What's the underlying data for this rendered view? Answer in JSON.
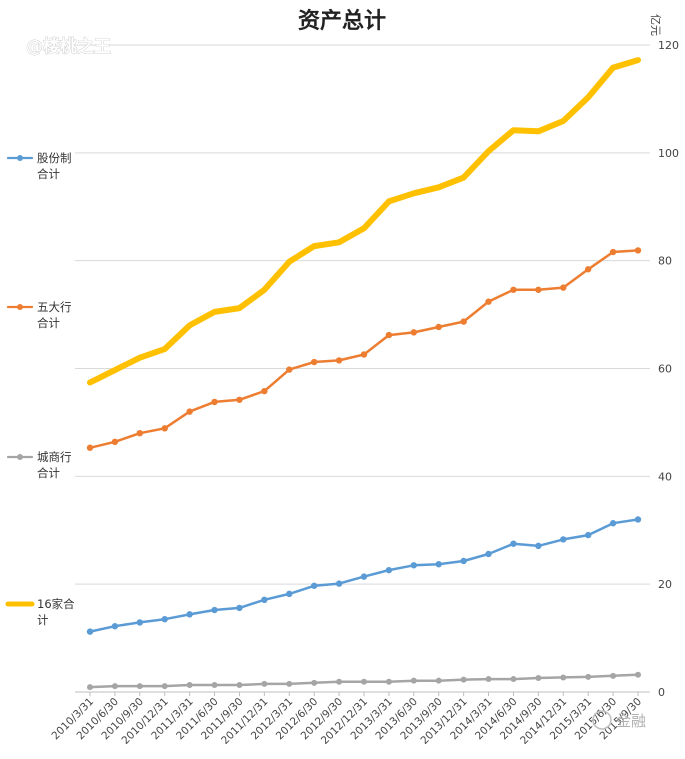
{
  "watermark": "@楼桃之王",
  "brand": "金融",
  "chart_data": {
    "type": "line",
    "title": "资产总计",
    "ylabel": "亿元",
    "xlabel": "",
    "ylim": [
      0,
      120
    ],
    "yticks": [
      0,
      20,
      40,
      60,
      80,
      100,
      120
    ],
    "grid": true,
    "legend_position": "left",
    "categories": [
      "2010/3/31",
      "2010/6/30",
      "2010/9/30",
      "2010/12/31",
      "2011/3/31",
      "2011/6/30",
      "2011/9/30",
      "2011/12/31",
      "2012/3/31",
      "2012/6/30",
      "2012/9/30",
      "2012/12/31",
      "2013/3/31",
      "2013/6/30",
      "2013/9/30",
      "2013/12/31",
      "2014/3/31",
      "2014/6/30",
      "2014/9/30",
      "2014/12/31",
      "2015/3/31",
      "2015/6/30",
      "2015/9/30"
    ],
    "series": [
      {
        "name": "股份制合计",
        "legend_lines": [
          "股份制",
          "合计"
        ],
        "color": "#5b9bd5",
        "values": [
          11.2,
          12.2,
          12.9,
          13.5,
          14.4,
          15.2,
          15.6,
          17.1,
          18.2,
          19.7,
          20.1,
          21.4,
          22.6,
          23.5,
          23.7,
          24.3,
          25.6,
          27.5,
          27.1,
          28.3,
          29.1,
          31.3,
          32.0
        ]
      },
      {
        "name": "五大行合计",
        "legend_lines": [
          "五大行",
          "合计"
        ],
        "color": "#ed7d31",
        "values": [
          45.3,
          46.4,
          48.0,
          48.9,
          52.0,
          53.8,
          54.2,
          55.8,
          59.8,
          61.2,
          61.5,
          62.6,
          66.2,
          66.7,
          67.7,
          68.7,
          72.4,
          74.6,
          74.6,
          75.0,
          78.4,
          81.6,
          81.9
        ]
      },
      {
        "name": "城商行合计",
        "legend_lines": [
          "城商行",
          "合计"
        ],
        "color": "#a5a5a5",
        "values": [
          0.9,
          1.1,
          1.1,
          1.1,
          1.3,
          1.3,
          1.3,
          1.5,
          1.5,
          1.7,
          1.9,
          1.9,
          1.9,
          2.1,
          2.1,
          2.3,
          2.4,
          2.4,
          2.6,
          2.7,
          2.8,
          3.0,
          3.2
        ]
      },
      {
        "name": "16家合计",
        "legend_lines": [
          "16家合",
          "计"
        ],
        "color": "#ffc000",
        "values": [
          57.4,
          59.7,
          62.0,
          63.6,
          68.0,
          70.5,
          71.2,
          74.6,
          79.8,
          82.7,
          83.4,
          86.0,
          91.0,
          92.5,
          93.6,
          95.4,
          100.3,
          104.2,
          104.0,
          105.9,
          110.3,
          115.8,
          117.2
        ]
      }
    ]
  }
}
